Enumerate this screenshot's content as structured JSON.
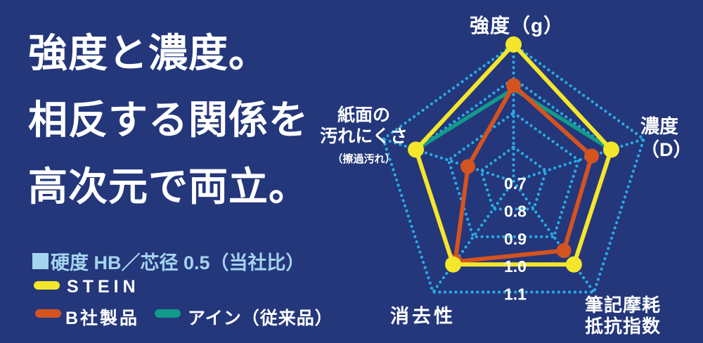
{
  "headline": {
    "line1": "強度と濃度。",
    "line2": "相反する関係を",
    "line3": "高次元で両立。"
  },
  "legend": {
    "note": "硬度 HB／芯径 0.5（当社比）",
    "series": [
      {
        "name": "STEIN",
        "color": "#f4e72b"
      },
      {
        "name": "B社製品",
        "color": "#d5531f"
      },
      {
        "name": "アイン（従来品）",
        "color": "#129a8b"
      }
    ]
  },
  "chart_data": {
    "type": "radar",
    "categories": [
      "強度（g）",
      "濃度（D）",
      "筆記摩耗抵抗指数",
      "消去性",
      "紙面の汚れにくさ（擦過汚れ）"
    ],
    "series": [
      {
        "name": "STEIN",
        "color": "#f4e72b",
        "width": 6,
        "markers": true,
        "marker_r": 11.5,
        "values": [
          1.1,
          1.0,
          1.0,
          1.0,
          1.0
        ]
      },
      {
        "name": "B社製品",
        "color": "#d5531f",
        "width": 6,
        "markers": true,
        "marker_r": 10.5,
        "values": [
          0.98,
          0.94,
          0.95,
          0.99,
          0.84
        ]
      },
      {
        "name": "アイン（従来品）",
        "color": "#129a8b",
        "width": 5.5,
        "markers": false,
        "marker_r": 0,
        "values": [
          0.97,
          1.0,
          1.0,
          1.0,
          1.0
        ]
      }
    ],
    "scale": {
      "min": 0.7,
      "max": 1.1,
      "rings": [
        0.8,
        0.9,
        1.0,
        1.1
      ],
      "ring_label_values": [
        0.7,
        0.8,
        0.9,
        1.0,
        1.1
      ],
      "ring_labels": [
        "0.7",
        "0.8",
        "0.9",
        "1.0",
        "1.1"
      ]
    },
    "grid_color": "#2aabe4",
    "axis_labels": {
      "top": "強度（g）",
      "right": [
        "濃度",
        "（D）"
      ],
      "bottom_right": [
        "筆記摩耗",
        "抵抗指数"
      ],
      "bottom_left": "消去性",
      "left": [
        "紙面の",
        "汚れにくさ",
        "（擦過汚れ）"
      ]
    }
  }
}
